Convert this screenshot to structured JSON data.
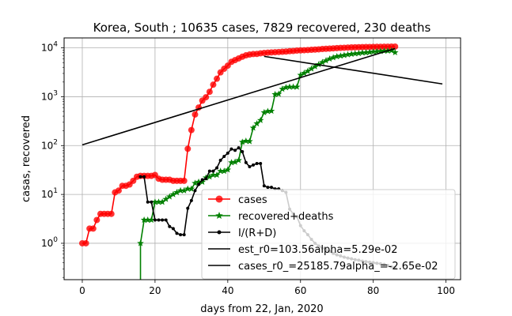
{
  "chart_data": {
    "type": "line",
    "title": "Korea, South ; 10635 cases, 7829 recovered, 230 deaths",
    "xlabel": "days from 22, Jan, 2020",
    "ylabel": "casas, recovered",
    "xlim": [
      -5,
      104
    ],
    "ylim": [
      0.18,
      16000
    ],
    "yscale": "log",
    "grid": true,
    "legend_position": "lower right",
    "x_ticks": [
      0,
      20,
      40,
      60,
      80,
      100
    ],
    "x_tick_labels": [
      "0",
      "20",
      "40",
      "60",
      "80",
      "100"
    ],
    "y_ticks": [
      1,
      10,
      100,
      1000,
      10000
    ],
    "y_tick_labels": [
      "10^0",
      "10^1",
      "10^2",
      "10^3",
      "10^4"
    ],
    "series": [
      {
        "name": "cases",
        "color": "#ff0000",
        "marker": "circle",
        "x": [
          0,
          1,
          2,
          3,
          4,
          5,
          6,
          7,
          8,
          9,
          10,
          11,
          12,
          13,
          14,
          15,
          16,
          17,
          18,
          19,
          20,
          21,
          22,
          23,
          24,
          25,
          26,
          27,
          28,
          29,
          30,
          31,
          32,
          33,
          34,
          35,
          36,
          37,
          38,
          39,
          40,
          41,
          42,
          43,
          44,
          45,
          46,
          47,
          48,
          49,
          50,
          51,
          52,
          53,
          54,
          55,
          56,
          57,
          58,
          59,
          60,
          61,
          62,
          63,
          64,
          65,
          66,
          67,
          68,
          69,
          70,
          71,
          72,
          73,
          74,
          75,
          76,
          77,
          78,
          79,
          80,
          81,
          82,
          83,
          84,
          85,
          86
        ],
        "values": [
          1,
          1,
          2,
          2,
          3,
          4,
          4,
          4,
          4,
          11,
          12,
          15,
          15,
          16,
          19,
          23,
          24,
          24,
          24,
          24,
          25,
          21,
          20,
          20,
          20,
          19,
          19,
          19,
          19,
          86,
          208,
          433,
          602,
          833,
          977,
          1261,
          1766,
          2337,
          3150,
          3736,
          4335,
          5186,
          5621,
          6088,
          6593,
          7041,
          7314,
          7478,
          7513,
          7755,
          7869,
          7979,
          8086,
          8162,
          8236,
          8320,
          8413,
          8565,
          8652,
          8799,
          8897,
          8961,
          9037,
          9137,
          9241,
          9332,
          9478,
          9583,
          9661,
          9786,
          9887,
          9976,
          10062,
          10156,
          10237,
          10284,
          10331,
          10384,
          10423,
          10450,
          10480,
          10512,
          10537,
          10564,
          10591,
          10613,
          10635
        ]
      },
      {
        "name": "recovered+deaths",
        "color": "#008000",
        "marker": "star",
        "x": [
          16,
          17,
          18,
          19,
          20,
          21,
          22,
          23,
          24,
          25,
          26,
          27,
          28,
          29,
          30,
          31,
          32,
          33,
          34,
          35,
          36,
          37,
          38,
          39,
          40,
          41,
          42,
          43,
          44,
          45,
          46,
          47,
          48,
          49,
          50,
          51,
          52,
          53,
          54,
          55,
          56,
          57,
          58,
          59,
          60,
          61,
          62,
          63,
          64,
          65,
          66,
          67,
          68,
          69,
          70,
          71,
          72,
          73,
          74,
          75,
          76,
          77,
          78,
          79,
          80,
          81,
          82,
          83,
          84,
          85,
          86
        ],
        "values": [
          1,
          3,
          3,
          3,
          7,
          7,
          7,
          8,
          9,
          10,
          11,
          12,
          12,
          13,
          13,
          17,
          18,
          18,
          22,
          23,
          25,
          25,
          30,
          30,
          32,
          45,
          46,
          50,
          118,
          124,
          122,
          230,
          282,
          330,
          476,
          503,
          511,
          1119,
          1140,
          1436,
          1546,
          1591,
          1591,
          1591,
          2782,
          3041,
          3338,
          3744,
          4149,
          4580,
          5066,
          5481,
          5964,
          6327,
          6683,
          6857,
          7066,
          7281,
          7468,
          7621,
          7742,
          7958,
          8017,
          8162,
          8340,
          8451,
          8552,
          8645,
          8699,
          8816,
          8059
        ]
      },
      {
        "name": "I/(R+D)",
        "color": "#000000",
        "marker": "dot",
        "x": [
          16,
          17,
          18,
          19,
          20,
          21,
          22,
          23,
          24,
          25,
          26,
          27,
          28,
          29,
          30,
          31,
          32,
          33,
          34,
          35,
          36,
          37,
          38,
          39,
          40,
          41,
          42,
          43,
          44,
          45,
          46,
          47,
          48,
          49,
          50,
          51,
          52,
          53,
          54,
          55,
          56,
          57,
          58,
          59,
          60,
          61,
          62,
          63,
          64,
          65,
          66,
          67,
          68,
          69,
          70,
          71,
          72,
          73,
          74,
          75,
          76,
          77,
          78,
          79,
          80,
          81,
          82,
          83,
          84,
          85,
          86
        ],
        "values": [
          23,
          23,
          7,
          7,
          3,
          3,
          3,
          3,
          2.2,
          2,
          1.6,
          1.5,
          1.5,
          5.2,
          7.5,
          12,
          16,
          20,
          21,
          30,
          30,
          35,
          50,
          60,
          70,
          85,
          80,
          90,
          75,
          45,
          37,
          40,
          43,
          43,
          15,
          14,
          14,
          13,
          13,
          12,
          11,
          5,
          4,
          3.5,
          2.3,
          1.8,
          1.5,
          1.2,
          1.0,
          0.88,
          0.8,
          0.74,
          0.68,
          0.62,
          0.58,
          0.55,
          0.52,
          0.5,
          0.48,
          0.46,
          0.45,
          0.43,
          0.42,
          0.41,
          0.4,
          0.39,
          0.38,
          0.37,
          0.35,
          0.33,
          0.32
        ]
      },
      {
        "name": "est_r0=103.56alpha=5.29e-02",
        "color": "#000000",
        "marker": "none",
        "x": [
          0,
          86
        ],
        "values": [
          103.56,
          9740
        ]
      },
      {
        "name": "cases_r0_=25185.79alpha_=-2.65e-02",
        "color": "#000000",
        "marker": "none",
        "x": [
          50,
          99
        ],
        "values": [
          6700,
          1830
        ]
      }
    ]
  }
}
